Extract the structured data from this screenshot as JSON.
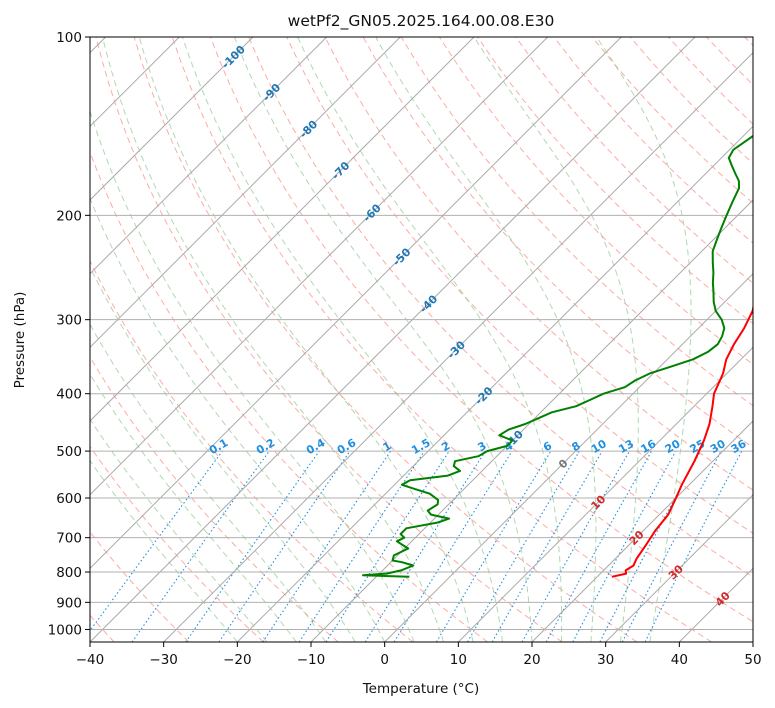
{
  "chart_data": {
    "type": "line",
    "title": "wetPf2_GN05.2025.164.00.08.E30",
    "xlabel": "Temperature (°C)",
    "ylabel": "Pressure (hPa)",
    "xlim": [
      -40,
      50
    ],
    "ylim": [
      1050,
      100
    ],
    "y_scale": "log",
    "x_ticks": [
      "−40",
      "−30",
      "−20",
      "−10",
      "0",
      "10",
      "20",
      "30",
      "40",
      "50"
    ],
    "y_ticks": [
      "100",
      "200",
      "300",
      "400",
      "500",
      "600",
      "700",
      "800",
      "900",
      "1000"
    ],
    "grid": true,
    "skew_angle_deg": 45,
    "series": [
      {
        "color": "#ff0000",
        "points": [
          [
            22,
            815
          ],
          [
            23.5,
            805
          ],
          [
            23,
            795
          ],
          [
            23.4,
            780
          ],
          [
            22.9,
            760
          ],
          [
            22.3,
            720
          ],
          [
            21.6,
            680
          ],
          [
            21.2,
            640
          ],
          [
            20,
            600
          ],
          [
            19,
            570
          ],
          [
            17.5,
            520
          ],
          [
            16,
            480
          ],
          [
            14.5,
            450
          ],
          [
            12.5,
            420
          ],
          [
            11,
            400
          ],
          [
            9.5,
            370
          ],
          [
            8,
            350
          ],
          [
            7,
            330
          ],
          [
            6.2,
            310
          ],
          [
            5,
            290
          ],
          [
            3,
            270
          ],
          [
            1,
            250
          ],
          [
            -1,
            230
          ],
          [
            -2.5,
            210
          ],
          [
            -3.5,
            200
          ],
          [
            -5.5,
            187
          ],
          [
            -6.8,
            177
          ],
          [
            -7.5,
            170
          ],
          [
            -7.8,
            165
          ],
          [
            -7.7,
            160
          ],
          [
            -7,
            155
          ],
          [
            -6,
            150
          ],
          [
            -5,
            145
          ],
          [
            -4,
            141
          ],
          [
            -3.6,
            138
          ],
          [
            -4,
            135
          ],
          [
            -4.9,
            132
          ],
          [
            -5.8,
            129
          ],
          [
            -6,
            126
          ],
          [
            -6.5,
            123
          ],
          [
            -7,
            120
          ],
          [
            -8,
            116
          ],
          [
            -9.5,
            113
          ],
          [
            -11.5,
            110
          ],
          [
            -13,
            107
          ],
          [
            -14.2,
            104
          ],
          [
            -15.6,
            100
          ]
        ]
      },
      {
        "color": "#008000",
        "points": [
          [
            -5.5,
            815
          ],
          [
            -12,
            810
          ],
          [
            -9,
            805
          ],
          [
            -7.5,
            795
          ],
          [
            -6.5,
            780
          ],
          [
            -8.5,
            770
          ],
          [
            -10,
            765
          ],
          [
            -10.5,
            750
          ],
          [
            -9.5,
            730
          ],
          [
            -12,
            710
          ],
          [
            -11.5,
            700
          ],
          [
            -12.5,
            690
          ],
          [
            -12.5,
            675
          ],
          [
            -9,
            660
          ],
          [
            -8,
            650
          ],
          [
            -11,
            640
          ],
          [
            -12,
            630
          ],
          [
            -11.5,
            615
          ],
          [
            -12,
            605
          ],
          [
            -14,
            590
          ],
          [
            -16.5,
            580
          ],
          [
            -19,
            570
          ],
          [
            -18.5,
            560
          ],
          [
            -14,
            550
          ],
          [
            -13,
            540
          ],
          [
            -14.5,
            530
          ],
          [
            -15,
            520
          ],
          [
            -12.5,
            510
          ],
          [
            -12,
            500
          ],
          [
            -10,
            490
          ],
          [
            -10,
            480
          ],
          [
            -12.5,
            470
          ],
          [
            -12,
            460
          ],
          [
            -10.5,
            450
          ],
          [
            -9.5,
            440
          ],
          [
            -8.5,
            430
          ],
          [
            -6,
            420
          ],
          [
            -5,
            410
          ],
          [
            -4,
            400
          ],
          [
            -2,
            390
          ],
          [
            -1.5,
            380
          ],
          [
            -0.5,
            370
          ],
          [
            1.5,
            360
          ],
          [
            3.5,
            350
          ],
          [
            4.5,
            340
          ],
          [
            4.8,
            330
          ],
          [
            4.3,
            320
          ],
          [
            3.5,
            310
          ],
          [
            2,
            300
          ],
          [
            0,
            290
          ],
          [
            -1.5,
            280
          ],
          [
            -2.8,
            270
          ],
          [
            -4.2,
            260
          ],
          [
            -5.5,
            250
          ],
          [
            -7,
            240
          ],
          [
            -8.5,
            230
          ],
          [
            -9.5,
            220
          ],
          [
            -10.5,
            210
          ],
          [
            -11.5,
            200
          ],
          [
            -12.5,
            190
          ],
          [
            -13.5,
            180
          ],
          [
            -14.5,
            175
          ],
          [
            -16,
            170
          ],
          [
            -17.5,
            165
          ],
          [
            -19,
            160
          ],
          [
            -19.5,
            155
          ],
          [
            -19,
            150
          ],
          [
            -18.5,
            145
          ],
          [
            -19.5,
            140
          ],
          [
            -21,
            135
          ],
          [
            -22.5,
            130
          ],
          [
            -23.5,
            125
          ],
          [
            -24.5,
            120
          ],
          [
            -25.5,
            115
          ],
          [
            -26.5,
            110
          ],
          [
            -27,
            105
          ],
          [
            -27.5,
            100
          ]
        ]
      }
    ],
    "isotherm_labels": [
      "-100",
      "-90",
      "-80",
      "-70",
      "-60",
      "-50",
      "-40",
      "-30",
      "-20",
      "-10",
      "0",
      "10",
      "20",
      "30",
      "40"
    ],
    "mixing_ratio_labels": [
      "0.1",
      "0.2",
      "0.4",
      "0.6",
      "1",
      "1.5",
      "2",
      "3",
      "4",
      "6",
      "8",
      "10",
      "13",
      "16",
      "20",
      "25",
      "30",
      "36"
    ],
    "colors": {
      "temperature": "#ff0000",
      "dewpoint": "#008000",
      "dry_adiabat": "#fa8072",
      "moist_adiabat": "#90c890",
      "mixing_ratio": "#1f8fe0",
      "isotherm_label": "#1f77b4",
      "warm_label": "#d62728",
      "zero_label": "#777777"
    }
  }
}
